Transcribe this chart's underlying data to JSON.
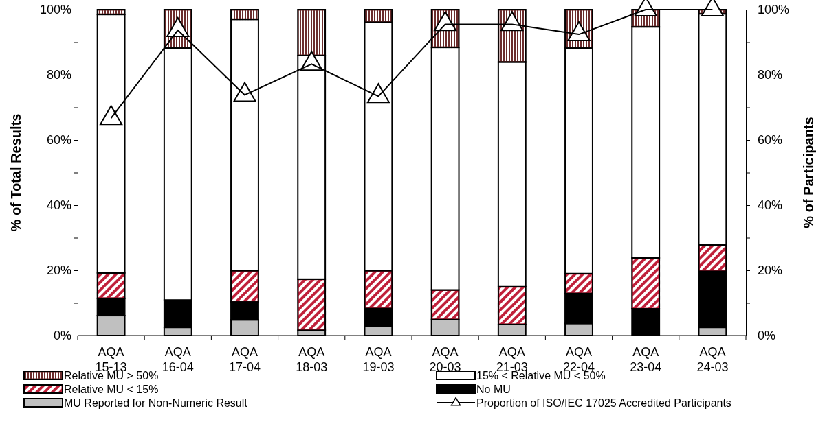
{
  "chart_data": {
    "type": "bar",
    "stacked": true,
    "ylabel": "% of Total Results",
    "y2label": "% of Participants",
    "categories": [
      "AQA 15-13",
      "AQA 16-04",
      "AQA 17-04",
      "AQA 18-03",
      "AQA 19-03",
      "AQA 20-03",
      "AQA 21-03",
      "AQA 22-04",
      "AQA 23-04",
      "AQA 24-03"
    ],
    "series": [
      {
        "name": "MU Reported for Non-Numeric Result",
        "color": "#c0c0c0",
        "values": [
          6.1,
          2.5,
          4.8,
          1.6,
          2.8,
          4.9,
          3.4,
          3.7,
          0,
          2.5
        ]
      },
      {
        "name": "No MU",
        "color": "#000000",
        "values": [
          5.3,
          8.4,
          5.5,
          0,
          5.5,
          0,
          0,
          9.2,
          8.2,
          17.2
        ]
      },
      {
        "name": "Relative MU < 15%",
        "color": "#c0203a",
        "values": [
          7.8,
          0,
          9.6,
          15.7,
          11.6,
          9.1,
          11.6,
          6.1,
          15.6,
          8.1
        ]
      },
      {
        "name": "15% < Relative MU < 50%",
        "color": "#ffffff",
        "values": [
          79.3,
          77.3,
          77.1,
          68.6,
          76.2,
          74.4,
          68.9,
          69.2,
          70.9,
          70.9
        ]
      },
      {
        "name": "Relative MU > 50%",
        "color": "#6b2c2c",
        "values": [
          1.5,
          11.8,
          3.0,
          14.1,
          3.9,
          11.6,
          16.1,
          11.8,
          5.3,
          1.3
        ]
      },
      {
        "name": "Proportion of ISO/IEC 17025 Accredited Participants",
        "type": "line",
        "axis": "y2",
        "color": "#000000",
        "marker": "triangle",
        "values": [
          66.7,
          93.7,
          73.8,
          83.3,
          73.4,
          95.5,
          95.5,
          92.4,
          100,
          100
        ]
      }
    ],
    "ylim": [
      0,
      100
    ],
    "yticks": [
      {
        "value": 0,
        "label": "0%"
      },
      {
        "value": 10,
        "label": null
      },
      {
        "value": 20,
        "label": "20%"
      },
      {
        "value": 30,
        "label": null
      },
      {
        "value": 40,
        "label": "40%"
      },
      {
        "value": 50,
        "label": null
      },
      {
        "value": 60,
        "label": "60%"
      },
      {
        "value": 70,
        "label": null
      },
      {
        "value": 80,
        "label": "80%"
      },
      {
        "value": 90,
        "label": null
      },
      {
        "value": 100,
        "label": "100%"
      }
    ],
    "y2lim": [
      0,
      100
    ],
    "y2ticks": [
      {
        "value": 0,
        "label": "0%"
      },
      {
        "value": 10,
        "label": null
      },
      {
        "value": 20,
        "label": "20%"
      },
      {
        "value": 30,
        "label": null
      },
      {
        "value": 40,
        "label": "40%"
      },
      {
        "value": 50,
        "label": null
      },
      {
        "value": 60,
        "label": "60%"
      },
      {
        "value": 70,
        "label": null
      },
      {
        "value": 80,
        "label": "80%"
      },
      {
        "value": 90,
        "label": null
      },
      {
        "value": 100,
        "label": "100%"
      }
    ],
    "grid": false,
    "legend": "bottom"
  }
}
